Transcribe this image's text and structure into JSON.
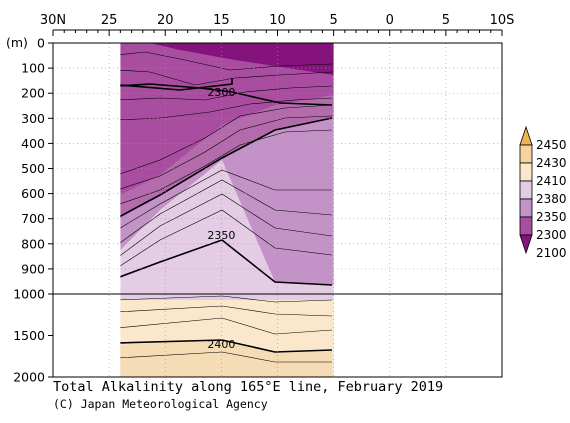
{
  "chart_data": {
    "type": "contour-section",
    "title": "Total Alkalinity along 165°E line, February 2019",
    "credit": "(C) Japan Meteorological Agency",
    "y_unit_label": "(m)",
    "x_ticks": [
      {
        "lat": 30,
        "label": "30N"
      },
      {
        "lat": 25,
        "label": "25"
      },
      {
        "lat": 20,
        "label": "20"
      },
      {
        "lat": 15,
        "label": "15"
      },
      {
        "lat": 10,
        "label": "10"
      },
      {
        "lat": 5,
        "label": "5"
      },
      {
        "lat": 0,
        "label": "0"
      },
      {
        "lat": -5,
        "label": "5"
      },
      {
        "lat": -10,
        "label": "10S"
      }
    ],
    "x_range_lat": [
      30,
      -10
    ],
    "data_extent_lat": [
      24,
      5
    ],
    "y_ticks_upper": [
      0,
      100,
      200,
      300,
      400,
      500,
      600,
      700,
      800,
      900,
      1000
    ],
    "y_ticks_lower": [
      1500,
      2000
    ],
    "depth_break_m": 1000,
    "depth_max_m": 2000,
    "colorbar": {
      "labels": [
        "2450",
        "2430",
        "2410",
        "2380",
        "2350",
        "2300",
        "2100"
      ],
      "colors": [
        "#f0b456",
        "#f8d29e",
        "#fbe8cc",
        "#e4cce5",
        "#c392c7",
        "#a84d9f",
        "#85137c"
      ]
    },
    "contour_labels": [
      {
        "text": "2300",
        "lat": 15,
        "depth": 195
      },
      {
        "text": "2350",
        "lat": 15,
        "depth": 765
      },
      {
        "text": "2400",
        "lat": 15,
        "depth": 1600
      }
    ],
    "grid": true
  }
}
